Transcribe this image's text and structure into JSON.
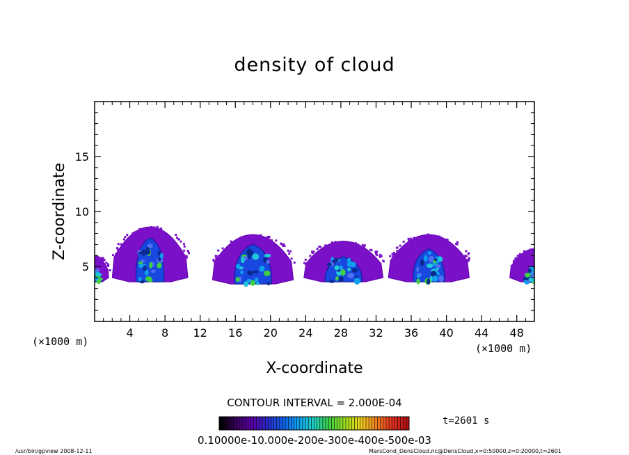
{
  "chart_data": {
    "type": "heatmap",
    "title": "density of cloud",
    "xlabel": "X-coordinate",
    "ylabel": "Z-coordinate",
    "x_unit_left": "(×1000 m)",
    "x_unit_right": "(×1000 m)",
    "xlim": [
      0,
      50
    ],
    "ylim": [
      0,
      20
    ],
    "x_ticks": [
      4,
      8,
      12,
      16,
      20,
      24,
      28,
      32,
      36,
      40,
      44,
      48
    ],
    "y_ticks": [
      5,
      10,
      15
    ],
    "cloud_cells": [
      {
        "center_x": 6.3,
        "base_z": 3.6,
        "top_z": 8.6,
        "halfwidth": 4.3,
        "core_top_z": 7.6,
        "core_halfwidth": 1.6
      },
      {
        "center_x": 18.0,
        "base_z": 3.4,
        "top_z": 7.9,
        "halfwidth": 4.6,
        "core_top_z": 7.0,
        "core_halfwidth": 2.1
      },
      {
        "center_x": 28.3,
        "base_z": 3.6,
        "top_z": 7.3,
        "halfwidth": 4.5,
        "core_top_z": 5.9,
        "core_halfwidth": 2.1
      },
      {
        "center_x": 38.0,
        "base_z": 3.6,
        "top_z": 7.9,
        "halfwidth": 4.6,
        "core_top_z": 6.6,
        "core_halfwidth": 1.8
      },
      {
        "center_x": 50.0,
        "base_z": 3.6,
        "top_z": 6.6,
        "halfwidth": 2.8,
        "core_top_z": 5.0,
        "core_halfwidth": 1.2
      },
      {
        "center_x": 0.0,
        "base_z": 3.6,
        "top_z": 6.0,
        "halfwidth": 1.6,
        "core_top_z": 4.8,
        "core_halfwidth": 0.8
      }
    ],
    "contour_interval_text": "CONTOUR INTERVAL = 2.000E-04",
    "time_label": "t=2601 s",
    "colorbar_colors": [
      "#000000",
      "#3a0060",
      "#5a00a8",
      "#2a2ac8",
      "#1060e8",
      "#10a0f0",
      "#20d0c0",
      "#40d040",
      "#a0e020",
      "#f0d020",
      "#f08020",
      "#e03020",
      "#b01010"
    ],
    "colorbar_label": "0.10000e-10.000e-200e-300e-400e-500e-03"
  },
  "footer_left": "/usr/bin/gpview    2008-12-11",
  "footer_right": "MarsCond_DensCloud.nc@DensCloud,x=0:50000,z=0:20000,t=2601"
}
